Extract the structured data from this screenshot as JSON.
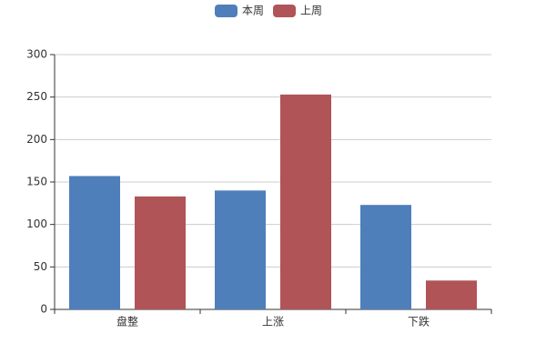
{
  "chart_data": {
    "type": "bar",
    "categories": [
      "盘整",
      "上涨",
      "下跌"
    ],
    "series": [
      {
        "name": "本周",
        "color": "#4e7fbb",
        "values": [
          157,
          140,
          123
        ]
      },
      {
        "name": "上周",
        "color": "#b05457",
        "values": [
          133,
          253,
          34
        ]
      }
    ],
    "ylim": [
      0,
      300
    ],
    "yticks": [
      0,
      50,
      100,
      150,
      200,
      250,
      300
    ],
    "grid": true,
    "legend": "top"
  }
}
